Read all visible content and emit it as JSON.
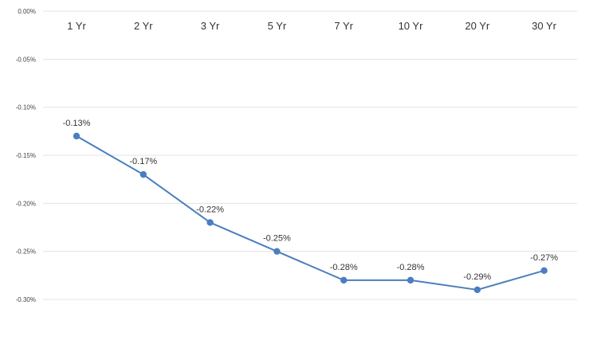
{
  "chart_data": {
    "type": "line",
    "categories": [
      "1 Yr",
      "2 Yr",
      "3 Yr",
      "5 Yr",
      "7 Yr",
      "10 Yr",
      "20 Yr",
      "30 Yr"
    ],
    "series": [
      {
        "values": [
          -0.13,
          -0.17,
          -0.22,
          -0.25,
          -0.28,
          -0.28,
          -0.29,
          -0.27
        ],
        "labels": [
          "-0.13%",
          "-0.17%",
          "-0.22%",
          "-0.25%",
          "-0.28%",
          "-0.28%",
          "-0.29%",
          "-0.27%"
        ],
        "color": "#4a7ebf"
      }
    ],
    "yticks": [
      0,
      -0.05,
      -0.1,
      -0.15,
      -0.2,
      -0.25,
      -0.3
    ],
    "ytick_labels": [
      "0.00%",
      "-0.05%",
      "-0.10%",
      "-0.15%",
      "-0.20%",
      "-0.25%",
      "-0.30%"
    ],
    "ylim": [
      -0.3,
      0.0
    ],
    "x_axis_position": "top",
    "grid": true,
    "legend": "none",
    "title": "",
    "xlabel": "",
    "ylabel": ""
  }
}
